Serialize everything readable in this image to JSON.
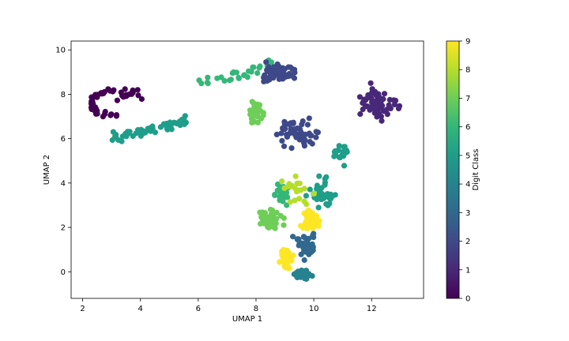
{
  "chart_data": {
    "type": "scatter",
    "title": "",
    "xlabel": "UMAP 1",
    "ylabel": "UMAP 2",
    "xlim": [
      1.6,
      13.8
    ],
    "ylim": [
      -1.2,
      10.4
    ],
    "xticks": [
      "2",
      "4",
      "6",
      "8",
      "10",
      "12"
    ],
    "xtick_values": [
      2,
      4,
      6,
      8,
      10,
      12
    ],
    "yticks": [
      "0",
      "2",
      "4",
      "6",
      "8",
      "10"
    ],
    "ytick_values": [
      0,
      2,
      4,
      6,
      8,
      10
    ],
    "colorbar": {
      "label": "Digit Class",
      "ticks": [
        "0",
        "1",
        "2",
        "3",
        "4",
        "5",
        "6",
        "7",
        "8",
        "9"
      ],
      "range": [
        0,
        9
      ],
      "colormap": "viridis"
    },
    "grid": false,
    "marker_color_by": "digit class",
    "clusters": [
      {
        "class": 0,
        "count": 45,
        "note": "arc left",
        "shape": "arc",
        "cx": 3.2,
        "cy": 7.6,
        "sx": 0.9,
        "sy": 0.6
      },
      {
        "class": 0,
        "count": 18,
        "shape": "blob",
        "cx": 3.6,
        "cy": 8.0,
        "sx": 0.5,
        "sy": 0.25
      },
      {
        "class": 5,
        "count": 60,
        "shape": "band",
        "x0": 3.0,
        "y0": 6.0,
        "x1": 5.6,
        "y1": 6.8,
        "spread": 0.15
      },
      {
        "class": 6,
        "count": 30,
        "shape": "band",
        "x0": 6.0,
        "y0": 8.4,
        "x1": 8.6,
        "y1": 9.4,
        "spread": 0.2
      },
      {
        "class": 2,
        "count": 70,
        "shape": "blob",
        "cx": 8.7,
        "cy": 8.9,
        "sx": 0.7,
        "sy": 0.45
      },
      {
        "class": 7,
        "count": 40,
        "shape": "blob",
        "cx": 8.0,
        "cy": 7.2,
        "sx": 0.35,
        "sy": 0.55
      },
      {
        "class": 2,
        "count": 55,
        "shape": "blob",
        "cx": 9.4,
        "cy": 6.3,
        "sx": 0.8,
        "sy": 0.7
      },
      {
        "class": 1,
        "count": 70,
        "shape": "blob",
        "cx": 12.2,
        "cy": 7.6,
        "sx": 0.7,
        "sy": 0.8
      },
      {
        "class": 5,
        "count": 20,
        "shape": "blob",
        "cx": 10.9,
        "cy": 5.4,
        "sx": 0.35,
        "sy": 0.6
      },
      {
        "class": 6,
        "count": 40,
        "shape": "blob",
        "cx": 8.9,
        "cy": 3.6,
        "sx": 0.3,
        "sy": 0.5
      },
      {
        "class": 7,
        "count": 40,
        "shape": "blob",
        "cx": 8.5,
        "cy": 2.4,
        "sx": 0.4,
        "sy": 0.5
      },
      {
        "class": 5,
        "count": 40,
        "shape": "blob",
        "cx": 10.3,
        "cy": 3.5,
        "sx": 0.45,
        "sy": 0.8
      },
      {
        "class": 9,
        "count": 45,
        "shape": "blob",
        "cx": 9.9,
        "cy": 2.4,
        "sx": 0.35,
        "sy": 0.5
      },
      {
        "class": 3,
        "count": 45,
        "shape": "blob",
        "cx": 9.7,
        "cy": 1.2,
        "sx": 0.5,
        "sy": 0.6
      },
      {
        "class": 9,
        "count": 45,
        "shape": "blob",
        "cx": 9.0,
        "cy": 0.6,
        "sx": 0.35,
        "sy": 0.45
      },
      {
        "class": 4,
        "count": 35,
        "shape": "blob",
        "cx": 9.6,
        "cy": -0.1,
        "sx": 0.3,
        "sy": 0.3
      },
      {
        "class": 8,
        "count": 20,
        "shape": "blob",
        "cx": 9.5,
        "cy": 3.6,
        "sx": 0.6,
        "sy": 0.7
      }
    ]
  }
}
